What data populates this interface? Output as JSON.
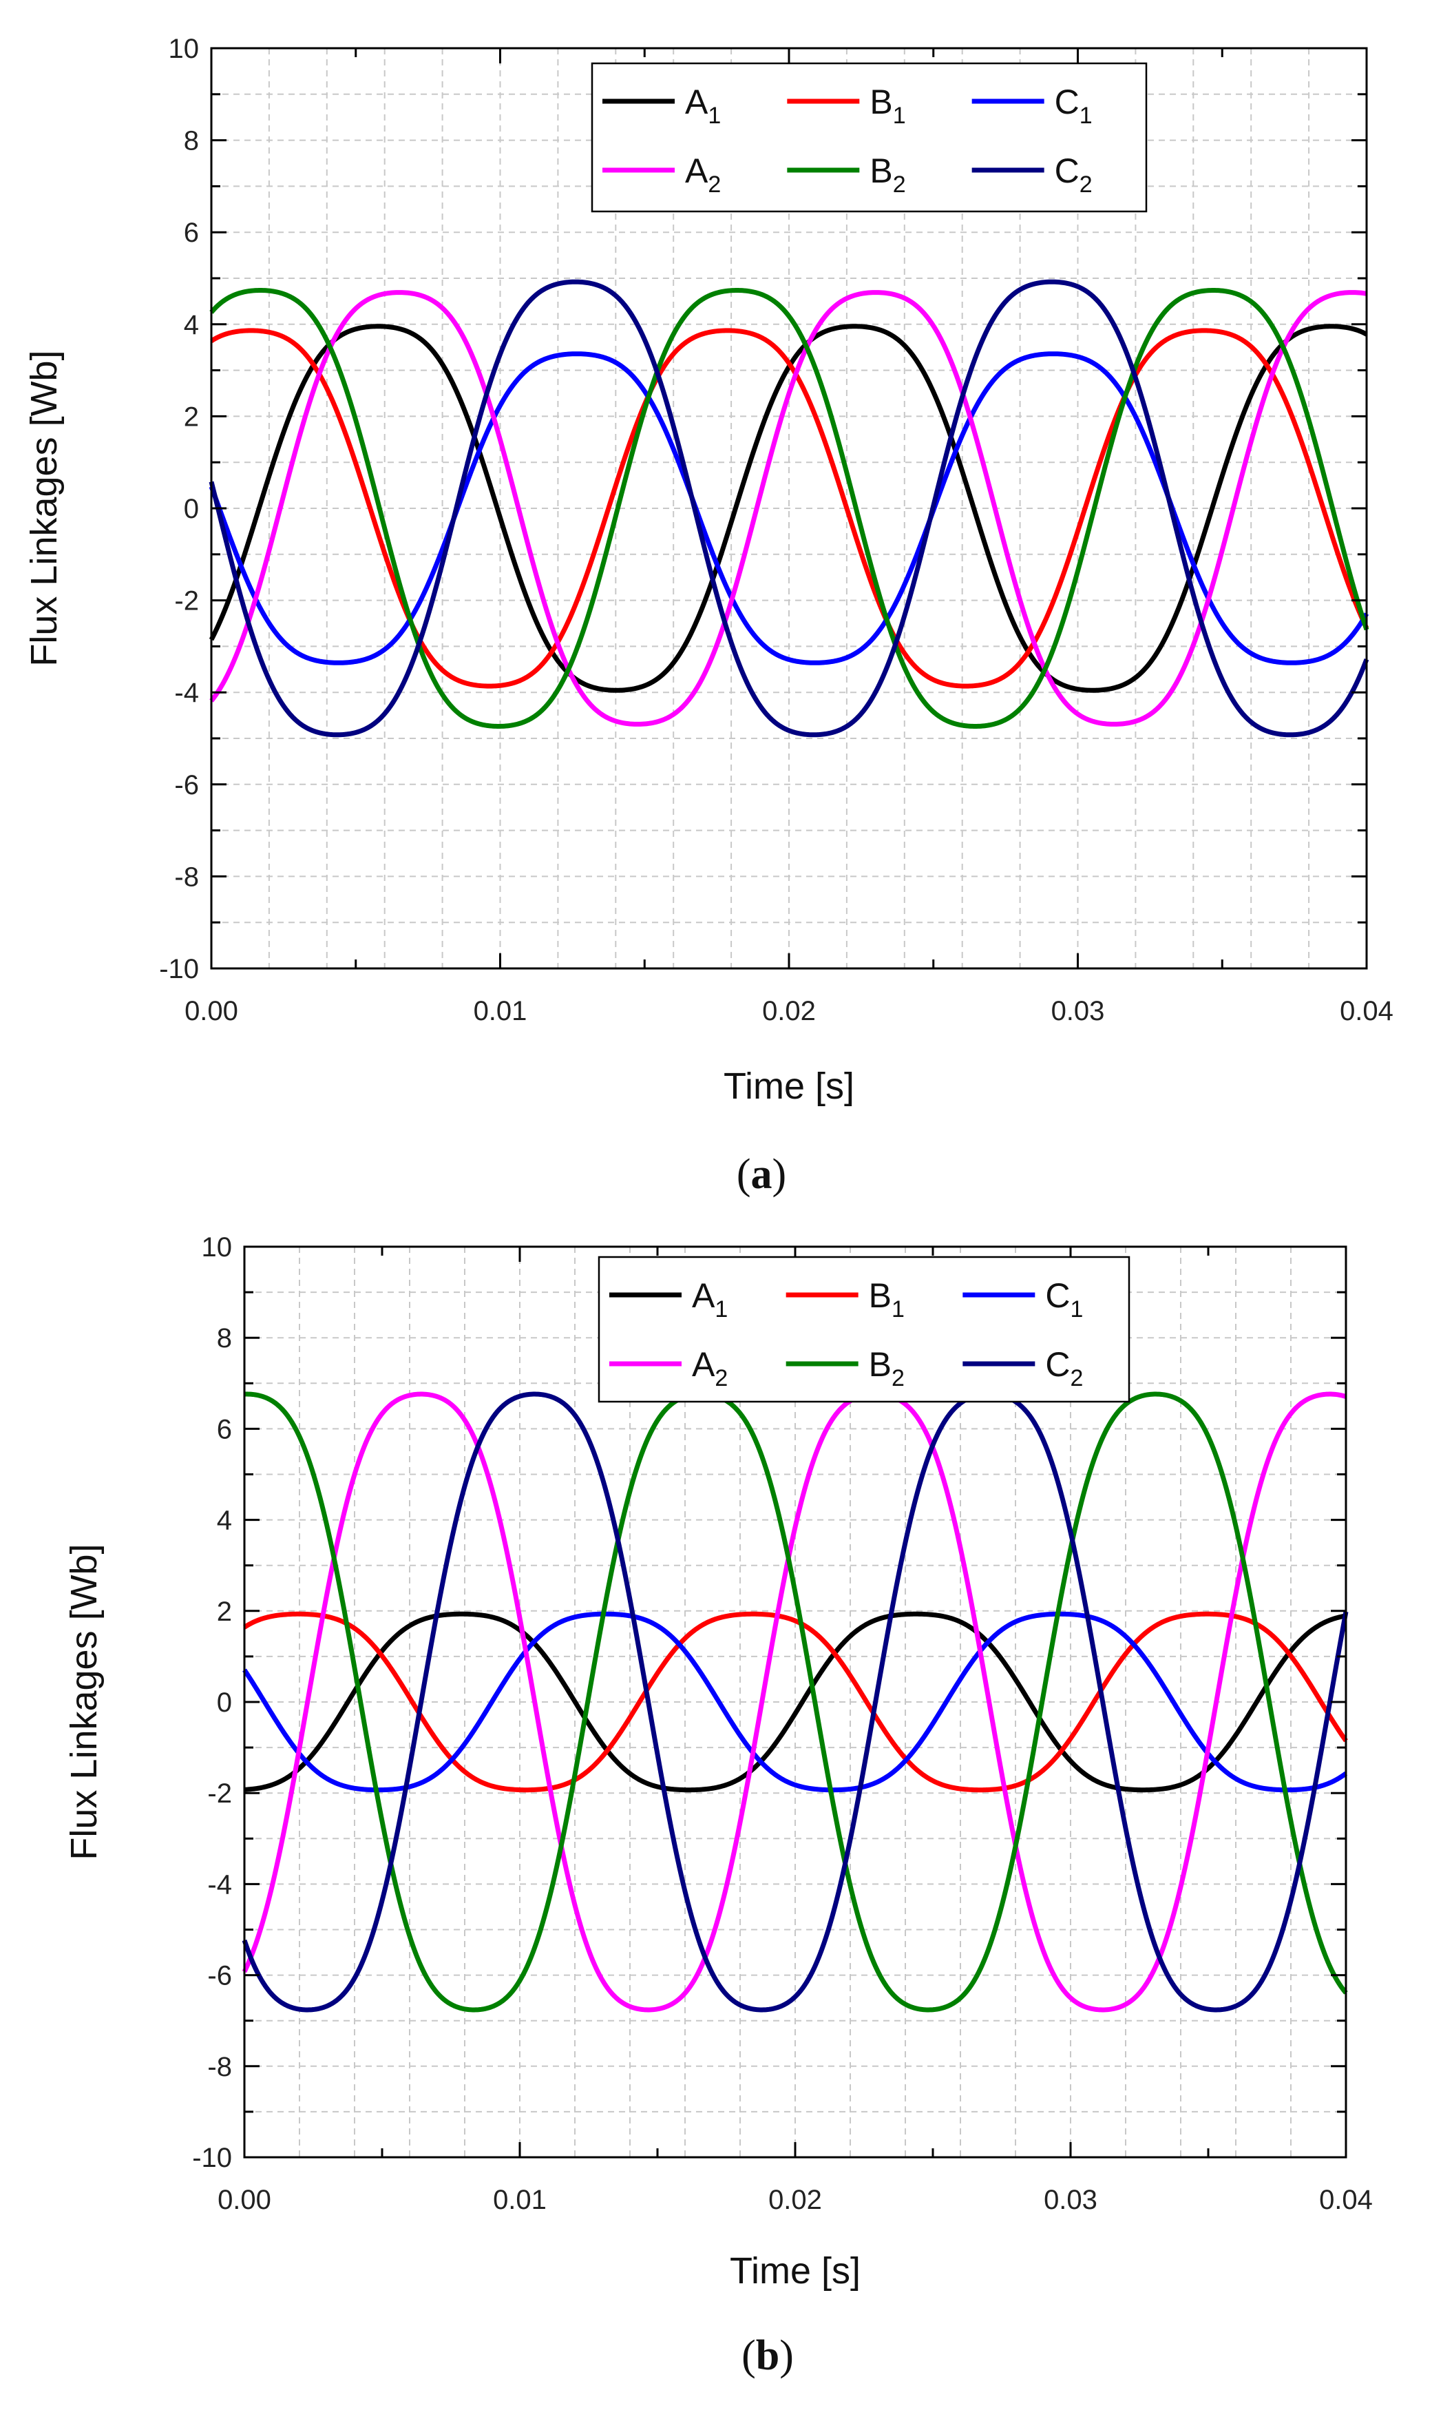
{
  "chart_data": [
    {
      "type": "line",
      "caption": "a",
      "xlabel": "Time [s]",
      "ylabel": "Flux Linkages [Wb]",
      "xlim": [
        0,
        0.04
      ],
      "ylim": [
        -10,
        10
      ],
      "xticks": [
        "0.00",
        "0.01",
        "0.02",
        "0.03",
        "0.04"
      ],
      "yticks": [
        "-10",
        "-8",
        "-6",
        "-4",
        "-2",
        "0",
        "2",
        "4",
        "6",
        "8",
        "10"
      ],
      "grid": true,
      "legend_position": "top-right",
      "series": [
        {
          "name": "A",
          "sub": "1",
          "color": "#000000",
          "amplitude": 4.3,
          "phase_deg": -36
        },
        {
          "name": "B",
          "sub": "1",
          "color": "#ff0000",
          "amplitude": 4.2,
          "phase_deg": 60
        },
        {
          "name": "C",
          "sub": "1",
          "color": "#0000ff",
          "amplitude": 3.65,
          "phase_deg": 174
        },
        {
          "name": "A",
          "sub": "2",
          "color": "#ff00ff",
          "amplitude": 5.1,
          "phase_deg": -52
        },
        {
          "name": "B",
          "sub": "2",
          "color": "#008000",
          "amplitude": 5.15,
          "phase_deg": 53
        },
        {
          "name": "C",
          "sub": "2",
          "color": "#000080",
          "amplitude": 5.35,
          "phase_deg": 175
        }
      ],
      "period_s": 0.0165
    },
    {
      "type": "line",
      "caption": "b",
      "xlabel": "Time [s]",
      "ylabel": "Flux Linkages [Wb]",
      "xlim": [
        0,
        0.04
      ],
      "ylim": [
        -10,
        10
      ],
      "xticks": [
        "0.00",
        "0.01",
        "0.02",
        "0.03",
        "0.04"
      ],
      "yticks": [
        "-10",
        "-8",
        "-6",
        "-4",
        "-2",
        "0",
        "2",
        "4",
        "6",
        "8",
        "10"
      ],
      "grid": true,
      "legend_position": "top-right",
      "series": [
        {
          "name": "A",
          "sub": "1",
          "color": "#000000",
          "amplitude": 2.1,
          "phase_deg": -82
        },
        {
          "name": "B",
          "sub": "1",
          "color": "#ff0000",
          "amplitude": 2.1,
          "phase_deg": 47
        },
        {
          "name": "C",
          "sub": "1",
          "color": "#0000ff",
          "amplitude": 2.1,
          "phase_deg": 164
        },
        {
          "name": "A",
          "sub": "2",
          "color": "#ff00ff",
          "amplitude": 7.35,
          "phase_deg": -50
        },
        {
          "name": "B",
          "sub": "2",
          "color": "#008000",
          "amplitude": 7.35,
          "phase_deg": 88
        },
        {
          "name": "C",
          "sub": "2",
          "color": "#000080",
          "amplitude": 7.35,
          "phase_deg": -140
        }
      ],
      "period_s": 0.0165
    }
  ]
}
